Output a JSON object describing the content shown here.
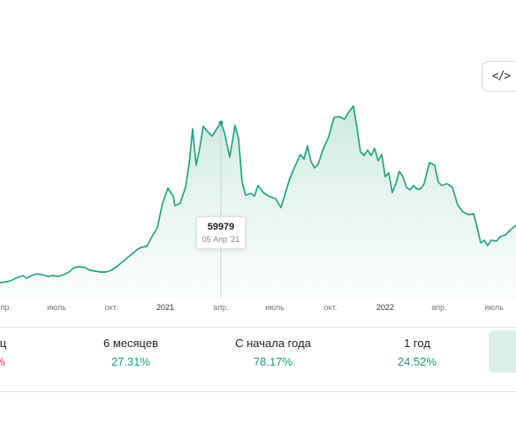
{
  "embed_button": {
    "label": "</>"
  },
  "tooltip": {
    "value": "59979",
    "date": "05 Апр '21"
  },
  "periods": [
    {
      "label": "яц",
      "value": "%",
      "negative": true
    },
    {
      "label": "6 месяцев",
      "value": "27.31%",
      "negative": false
    },
    {
      "label": "С начала года",
      "value": "78.17%",
      "negative": false
    },
    {
      "label": "1 год",
      "value": "24.52%",
      "negative": false
    }
  ],
  "colors": {
    "line": "#26a384",
    "positive": "#1f9c7c",
    "negative": "#e0314b",
    "accent_box": "#dcefe7"
  },
  "chart_data": {
    "type": "area",
    "x_tick_labels": [
      "апр.",
      "июль",
      "окт.",
      "2021",
      "апр.",
      "июль",
      "окт.",
      "2022",
      "апр.",
      "июль"
    ],
    "highlighted_point": {
      "date": "05 Апр '21",
      "value": 59979
    },
    "grid": false,
    "y_axis_visible": false
  }
}
